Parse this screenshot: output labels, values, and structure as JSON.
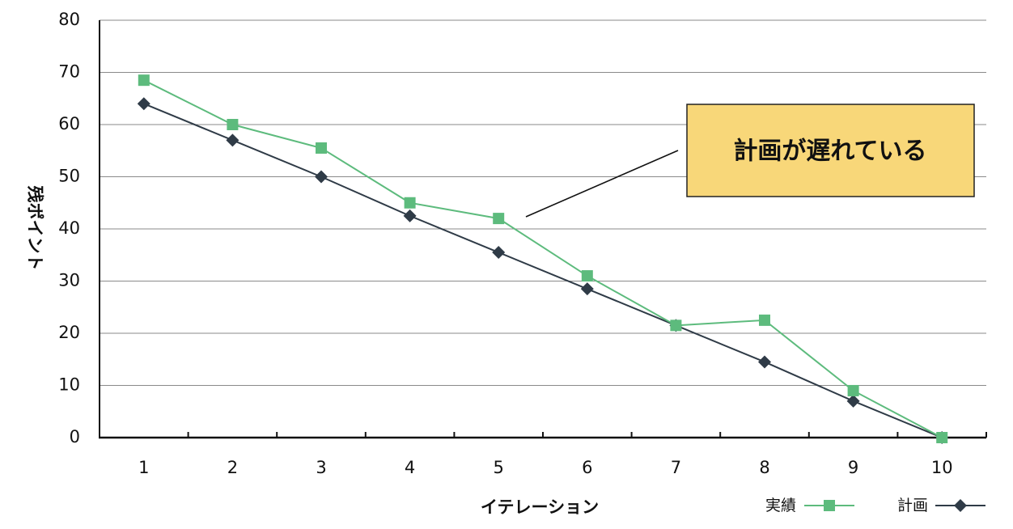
{
  "chart_data": {
    "type": "line",
    "x": [
      1,
      2,
      3,
      4,
      5,
      6,
      7,
      8,
      9,
      10
    ],
    "categories": [
      "1",
      "2",
      "3",
      "4",
      "5",
      "6",
      "7",
      "8",
      "9",
      "10"
    ],
    "series": [
      {
        "name": "実績",
        "values": [
          68.5,
          60,
          55.5,
          45,
          42,
          31,
          21.5,
          22.5,
          9,
          0
        ],
        "color": "#5dbb7d",
        "marker": "square"
      },
      {
        "name": "計画",
        "values": [
          64,
          57,
          50,
          42.5,
          35.5,
          28.5,
          21.5,
          14.5,
          7,
          0
        ],
        "color": "#2f3b47",
        "marker": "diamond"
      }
    ],
    "xlabel": "イテレーション",
    "ylabel": "残ポイント",
    "ylim": [
      0,
      80
    ],
    "yticks": [
      0,
      10,
      20,
      30,
      40,
      50,
      60,
      70,
      80
    ],
    "grid": true,
    "legend_position": "bottom-right",
    "annotation": {
      "text": "計画が遅れている",
      "box_color": "#f8d779"
    }
  }
}
